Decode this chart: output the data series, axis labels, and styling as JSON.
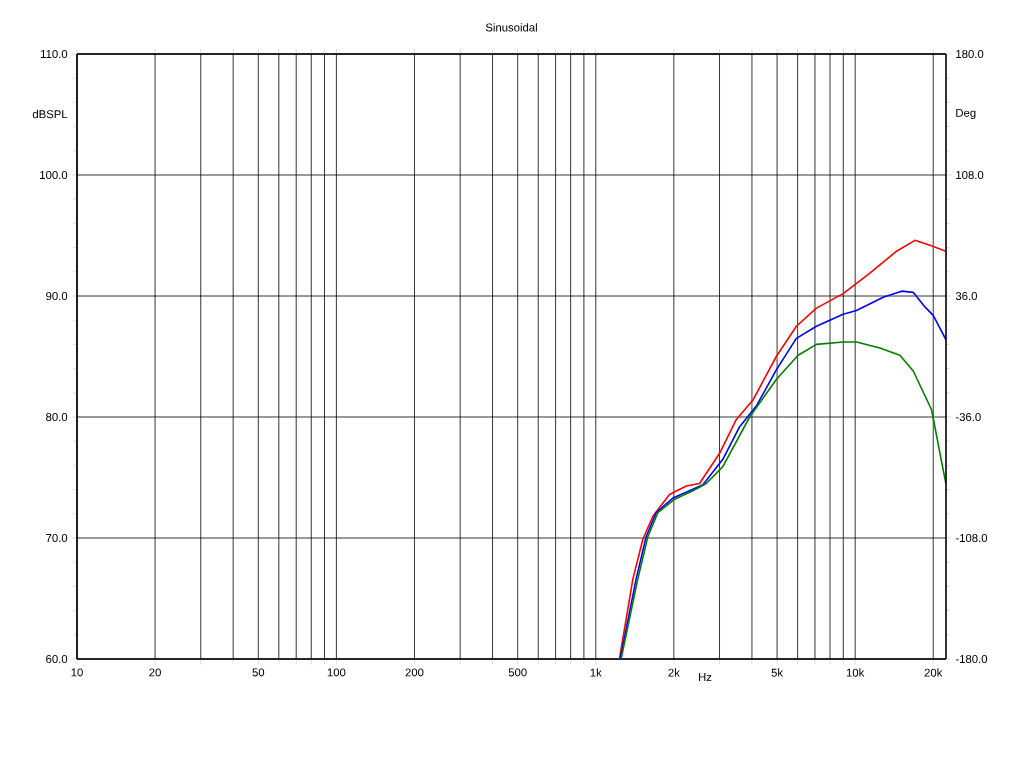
{
  "chart_data": {
    "type": "line",
    "title": "Sinusoidal",
    "xlabel": "Hz",
    "ylabel": "dBSPL",
    "y2label": "Deg",
    "log": "x",
    "grid": true,
    "marker": "none",
    "line_style": "solid",
    "xlim": [
      10,
      22400
    ],
    "ylim": [
      60,
      110
    ],
    "y2lim": [
      -180,
      180
    ],
    "xticks": [
      10,
      20,
      {
        "value": 30,
        "label": null
      },
      {
        "value": 40,
        "label": null
      },
      50,
      {
        "value": 60,
        "label": null
      },
      {
        "value": 70,
        "label": null
      },
      {
        "value": 80,
        "label": null
      },
      {
        "value": 90,
        "label": null
      },
      100,
      200,
      {
        "value": 300,
        "label": null
      },
      {
        "value": 400,
        "label": null
      },
      500,
      {
        "value": 600,
        "label": null
      },
      {
        "value": 700,
        "label": null
      },
      {
        "value": 800,
        "label": null
      },
      {
        "value": 900,
        "label": null
      },
      {
        "value": 1000,
        "label": "1k"
      },
      {
        "value": 2000,
        "label": "2k"
      },
      {
        "value": 3000,
        "label": null
      },
      {
        "value": 4000,
        "label": null
      },
      {
        "value": 5000,
        "label": "5k"
      },
      {
        "value": 6000,
        "label": null
      },
      {
        "value": 7000,
        "label": null
      },
      {
        "value": 8000,
        "label": null
      },
      {
        "value": 9000,
        "label": null
      },
      {
        "value": 10000,
        "label": "10k"
      },
      {
        "value": 20000,
        "label": "20k"
      }
    ],
    "yticks": [
      {
        "value": 60,
        "label": "60.0"
      },
      {
        "value": 70,
        "label": "70.0"
      },
      {
        "value": 80,
        "label": "80.0"
      },
      {
        "value": 90,
        "label": "90.0"
      },
      {
        "value": 100,
        "label": "100.0"
      },
      {
        "value": 110,
        "label": "110.0"
      }
    ],
    "y2ticks": [
      {
        "value": -180,
        "label": "-180.0"
      },
      {
        "value": -108,
        "label": "-108.0"
      },
      {
        "value": -36,
        "label": "-36.0"
      },
      {
        "value": 36,
        "label": "36.0"
      },
      {
        "value": 108,
        "label": "108.0"
      },
      {
        "value": 180,
        "label": "180.0"
      }
    ],
    "series": [
      {
        "color": "#ff0000",
        "x": [
          1234,
          1390,
          1519,
          1660,
          1925,
          2233,
          2512,
          3002,
          3483,
          4036,
          4966,
          5935,
          7091,
          8990,
          11394,
          14438,
          17002,
          19420,
          22380
        ],
        "values": [
          60,
          66.6,
          69.9,
          71.8,
          73.6,
          74.3,
          74.5,
          77.0,
          79.8,
          81.4,
          85.0,
          87.5,
          89.0,
          90.2,
          91.9,
          93.7,
          94.6,
          94.2,
          93.7
        ]
      },
      {
        "color": "#0000ff",
        "x": [
          1242,
          1431,
          1564,
          1710,
          1983,
          2300,
          2589,
          3090,
          3587,
          4159,
          4966,
          5935,
          7091,
          8990,
          10118,
          12828,
          15098,
          16750,
          18580,
          20000,
          22380
        ],
        "values": [
          60,
          66.6,
          70.1,
          72.1,
          73.3,
          73.9,
          74.4,
          76.5,
          79.2,
          80.9,
          83.9,
          86.5,
          87.5,
          88.5,
          88.8,
          89.9,
          90.4,
          90.3,
          89.1,
          88.4,
          86.4
        ]
      },
      {
        "color": "#008000",
        "x": [
          1252,
          1452,
          1588,
          1735,
          2012,
          2369,
          2667,
          3090,
          3921,
          4966,
          6026,
          7091,
          8990,
          10118,
          12450,
          14875,
          16750,
          19710,
          21230,
          22380
        ],
        "values": [
          60,
          66.6,
          70.1,
          72.1,
          73.2,
          73.9,
          74.5,
          75.9,
          80.0,
          83.1,
          85.1,
          86.0,
          86.2,
          86.2,
          85.7,
          85.1,
          83.8,
          80.6,
          77.0,
          74.5
        ]
      }
    ]
  }
}
